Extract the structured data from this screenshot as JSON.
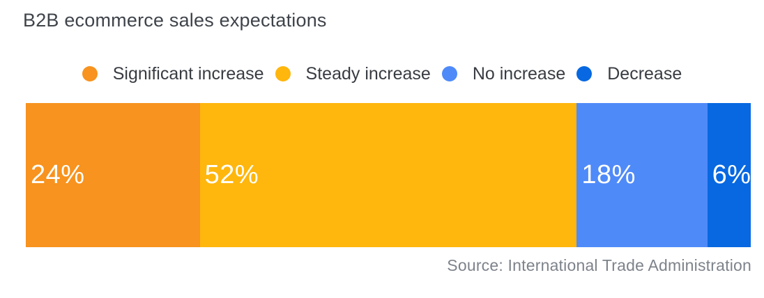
{
  "chart": {
    "title": "B2B ecommerce sales expectations",
    "source": "Source: International Trade Administration"
  },
  "chart_data": {
    "type": "bar",
    "subtype": "horizontal-stacked-100-percent",
    "title": "B2B ecommerce sales expectations",
    "categories": [
      "Significant increase",
      "Steady increase",
      "No increase",
      "Decrease"
    ],
    "values": [
      24,
      52,
      18,
      6
    ],
    "unit": "%",
    "value_labels": [
      "24%",
      "52%",
      "18%",
      "6%"
    ],
    "colors": [
      "#f7931e",
      "#ffb60d",
      "#4f8af9",
      "#0768e1"
    ],
    "label_color": "#ffffff",
    "legend_position": "top-center",
    "axes": "none",
    "grid": false,
    "source": "Source: International Trade Administration"
  }
}
